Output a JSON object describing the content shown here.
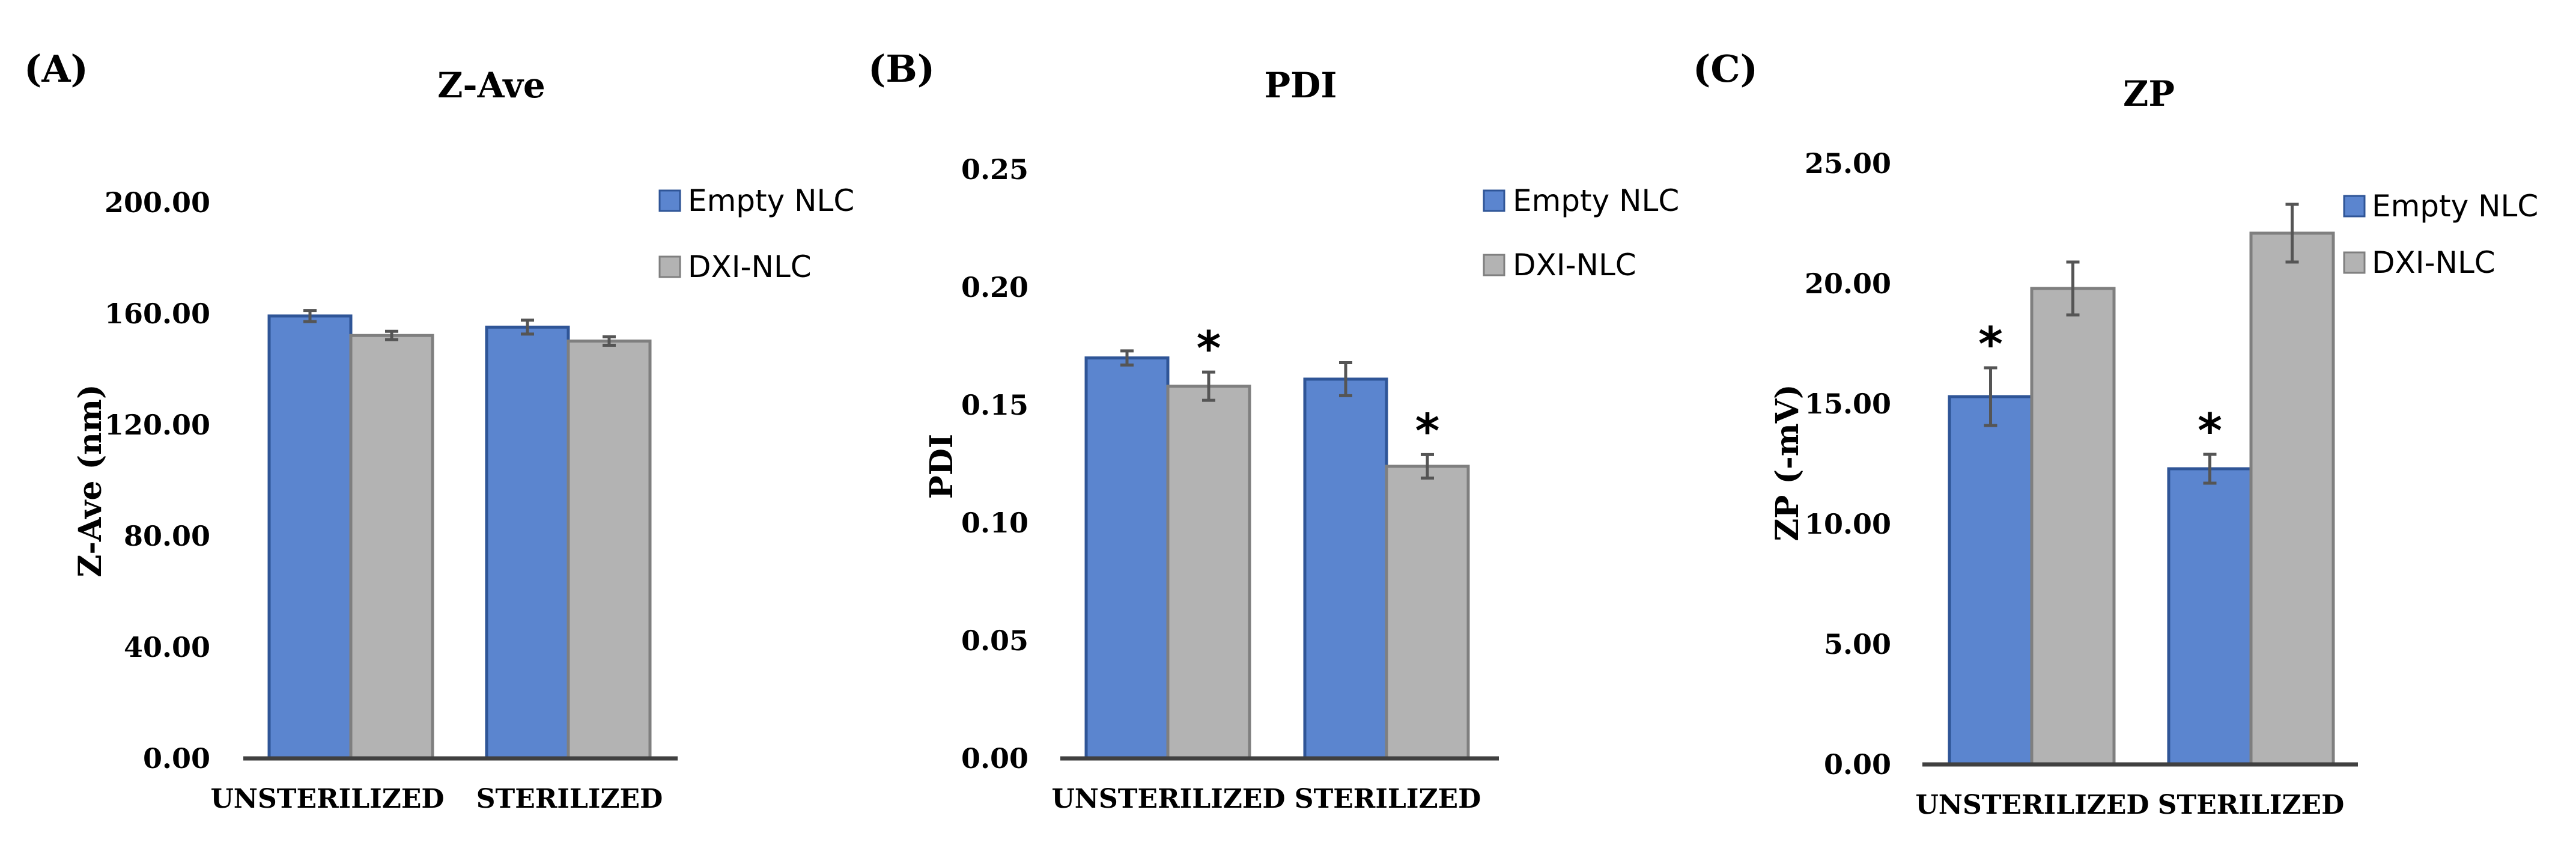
{
  "colors": {
    "empty_nlc": "#5B85CF",
    "empty_nlc_border": "#2F5597",
    "dxi_nlc": "#B3B3B3",
    "dxi_nlc_border": "#7F7F7F",
    "axis": "#404040",
    "error_bar": "#555555"
  },
  "chart_data": [
    {
      "type": "bar",
      "panel_label": "(A)",
      "title": "Z-Ave",
      "xlabel": "",
      "ylabel": "Z-Ave (nm)",
      "ylim": [
        0,
        200
      ],
      "yticks": [
        0,
        40,
        80,
        120,
        160,
        200
      ],
      "ytick_labels": [
        "0.00",
        "40.00",
        "80.00",
        "120.00",
        "160.00",
        "200.00"
      ],
      "categories": [
        "UNSTERILIZED",
        "STERILIZED"
      ],
      "series": [
        {
          "name": "Empty NLC",
          "values": [
            159,
            155
          ],
          "errors": [
            2,
            2.5
          ],
          "significant": [
            false,
            false
          ]
        },
        {
          "name": "DXI-NLC",
          "values": [
            152,
            150
          ],
          "errors": [
            1.5,
            1.5
          ],
          "significant": [
            false,
            false
          ]
        }
      ],
      "significance_marker": "*",
      "legend": {
        "position": "top-right",
        "entries": [
          "Empty NLC",
          "DXI-NLC"
        ]
      }
    },
    {
      "type": "bar",
      "panel_label": "(B)",
      "title": "PDI",
      "xlabel": "",
      "ylabel": "PDI",
      "ylim": [
        0,
        0.25
      ],
      "yticks": [
        0,
        0.05,
        0.1,
        0.15,
        0.2,
        0.25
      ],
      "ytick_labels": [
        "0.00",
        "0.05",
        "0.10",
        "0.15",
        "0.20",
        "0.25"
      ],
      "categories": [
        "UNSTERILIZED",
        "STERILIZED"
      ],
      "series": [
        {
          "name": "Empty NLC",
          "values": [
            0.17,
            0.161
          ],
          "errors": [
            0.003,
            0.007
          ],
          "significant": [
            false,
            false
          ]
        },
        {
          "name": "DXI-NLC",
          "values": [
            0.158,
            0.124
          ],
          "errors": [
            0.006,
            0.005
          ],
          "significant": [
            true,
            true
          ]
        }
      ],
      "significance_marker": "*",
      "legend": {
        "position": "top-right",
        "entries": [
          "Empty NLC",
          "DXI-NLC"
        ]
      }
    },
    {
      "type": "bar",
      "panel_label": "(C)",
      "title": "ZP",
      "xlabel": "",
      "ylabel": "ZP (-mV)",
      "ylim": [
        0,
        25
      ],
      "yticks": [
        0,
        5,
        10,
        15,
        20,
        25
      ],
      "ytick_labels": [
        "0.00",
        "5.00",
        "10.00",
        "15.00",
        "20.00",
        "25.00"
      ],
      "categories": [
        "UNSTERILIZED",
        "STERILIZED"
      ],
      "series": [
        {
          "name": "Empty NLC",
          "values": [
            15.3,
            12.3
          ],
          "errors": [
            1.2,
            0.6
          ],
          "significant": [
            true,
            true
          ]
        },
        {
          "name": "DXI-NLC",
          "values": [
            19.8,
            22.1
          ],
          "errors": [
            1.1,
            1.2
          ],
          "significant": [
            false,
            false
          ]
        }
      ],
      "significance_marker": "*",
      "legend": {
        "position": "top-right",
        "entries": [
          "Empty NLC",
          "DXI-NLC"
        ]
      }
    }
  ]
}
